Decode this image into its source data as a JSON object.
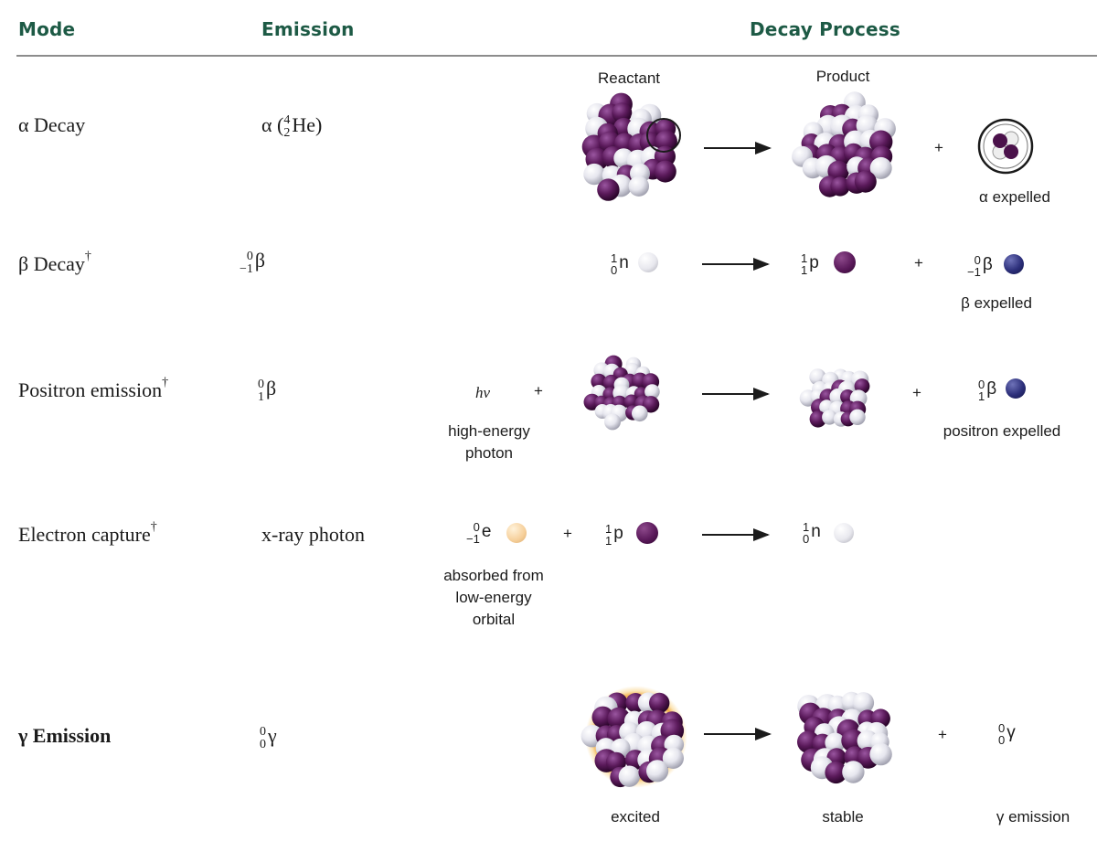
{
  "headers": {
    "mode": "Mode",
    "emission": "Emission",
    "decay_process": "Decay Process"
  },
  "column_labels": {
    "reactant": "Reactant",
    "product": "Product"
  },
  "rows": {
    "alpha": {
      "mode": "α Decay",
      "emission_symbol": "α",
      "emission_mass": "4",
      "emission_atomic": "2",
      "emission_element": "He",
      "caption": "α expelled"
    },
    "beta": {
      "mode": "β Decay",
      "dagger": "†",
      "emission_mass": "0",
      "emission_atomic": "−1",
      "emission_symbol": "β",
      "reactant": {
        "mass": "1",
        "atomic": "0",
        "symbol": "n"
      },
      "product": {
        "mass": "1",
        "atomic": "1",
        "symbol": "p"
      },
      "expelled": {
        "mass": "0",
        "atomic": "−1",
        "symbol": "β"
      },
      "caption": "β expelled"
    },
    "positron": {
      "mode": "Positron emission",
      "dagger": "†",
      "emission_mass": "0",
      "emission_atomic": "1",
      "emission_symbol": "β",
      "photon_symbol": "hν",
      "photon_caption_line1": "high-energy",
      "photon_caption_line2": "photon",
      "expelled": {
        "mass": "0",
        "atomic": "1",
        "symbol": "β"
      },
      "caption": "positron expelled"
    },
    "capture": {
      "mode": "Electron capture",
      "dagger": "†",
      "emission": "x-ray photon",
      "electron": {
        "mass": "0",
        "atomic": "−1",
        "symbol": "e"
      },
      "proton": {
        "mass": "1",
        "atomic": "1",
        "symbol": "p"
      },
      "product": {
        "mass": "1",
        "atomic": "0",
        "symbol": "n"
      },
      "caption_line1": "absorbed from",
      "caption_line2": "low-energy",
      "caption_line3": "orbital"
    },
    "gamma": {
      "mode": "γ Emission",
      "emission_mass": "0",
      "emission_atomic": "0",
      "emission_symbol": "γ",
      "expelled": {
        "mass": "0",
        "atomic": "0",
        "symbol": "γ"
      },
      "caption_excited": "excited",
      "caption_stable": "stable",
      "caption_emission": "γ emission"
    }
  },
  "operators": {
    "plus": "+"
  },
  "colors": {
    "header": "#1d5a45",
    "proton": "#5b1a5b",
    "neutron": "#e8e8ee",
    "beta": "#2c2f7a",
    "electron": "#f6cf9a",
    "glow": "#f2a93b"
  },
  "icons": {
    "nucleus": "nucleus-icon",
    "alpha_particle": "alpha-particle-icon"
  }
}
